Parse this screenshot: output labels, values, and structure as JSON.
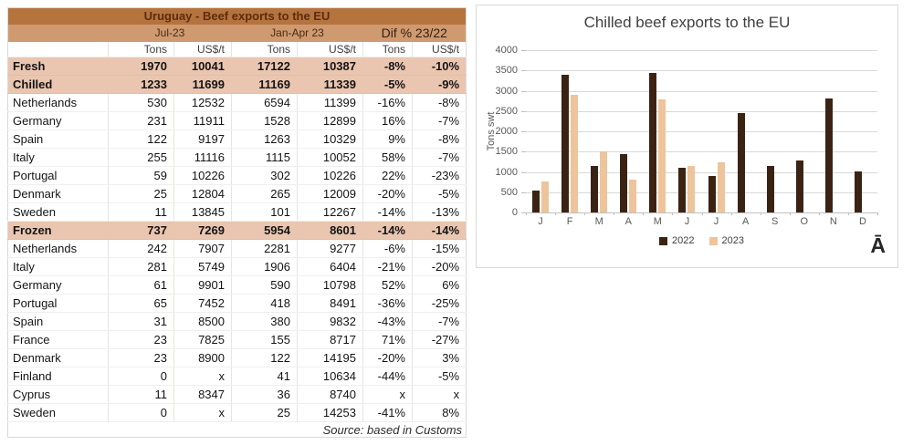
{
  "table": {
    "title": "Uruguay - Beef exports to the EU",
    "period_headers": [
      "Jul-23",
      "Jan-Apr 23",
      "Dif % 23/22"
    ],
    "sub_headers": [
      "Tons",
      "US$/t",
      "Tons",
      "US$/t",
      "Tons",
      "US$/t"
    ],
    "rows": [
      {
        "label": "Fresh",
        "type": "subtotal",
        "values": [
          "1970",
          "10041",
          "17122",
          "10387",
          "-8%",
          "-10%"
        ]
      },
      {
        "label": "Chilled",
        "type": "subtotal",
        "values": [
          "1233",
          "11699",
          "11169",
          "11339",
          "-5%",
          "-9%"
        ]
      },
      {
        "label": "Netherlands",
        "type": "data",
        "values": [
          "530",
          "12532",
          "6594",
          "11399",
          "-16%",
          "-8%"
        ]
      },
      {
        "label": "Germany",
        "type": "data",
        "values": [
          "231",
          "11911",
          "1528",
          "12899",
          "16%",
          "-7%"
        ]
      },
      {
        "label": "Spain",
        "type": "data",
        "values": [
          "122",
          "9197",
          "1263",
          "10329",
          "9%",
          "-8%"
        ]
      },
      {
        "label": "Italy",
        "type": "data",
        "values": [
          "255",
          "11116",
          "1115",
          "10052",
          "58%",
          "-7%"
        ]
      },
      {
        "label": "Portugal",
        "type": "data",
        "values": [
          "59",
          "10226",
          "302",
          "10226",
          "22%",
          "-23%"
        ]
      },
      {
        "label": "Denmark",
        "type": "data",
        "values": [
          "25",
          "12804",
          "265",
          "12009",
          "-20%",
          "-5%"
        ]
      },
      {
        "label": "Sweden",
        "type": "data",
        "values": [
          "11",
          "13845",
          "101",
          "12267",
          "-14%",
          "-13%"
        ]
      },
      {
        "label": "Frozen",
        "type": "subtotal",
        "values": [
          "737",
          "7269",
          "5954",
          "8601",
          "-14%",
          "-14%"
        ]
      },
      {
        "label": "Netherlands",
        "type": "data",
        "values": [
          "242",
          "7907",
          "2281",
          "9277",
          "-6%",
          "-15%"
        ]
      },
      {
        "label": "Italy",
        "type": "data",
        "values": [
          "281",
          "5749",
          "1906",
          "6404",
          "-21%",
          "-20%"
        ]
      },
      {
        "label": "Germany",
        "type": "data",
        "values": [
          "61",
          "9901",
          "590",
          "10798",
          "52%",
          "6%"
        ]
      },
      {
        "label": "Portugal",
        "type": "data",
        "values": [
          "65",
          "7452",
          "418",
          "8491",
          "-36%",
          "-25%"
        ]
      },
      {
        "label": "Spain",
        "type": "data",
        "values": [
          "31",
          "8500",
          "380",
          "9832",
          "-43%",
          "-7%"
        ]
      },
      {
        "label": "France",
        "type": "data",
        "values": [
          "23",
          "7825",
          "155",
          "8717",
          "71%",
          "-27%"
        ]
      },
      {
        "label": "Denmark",
        "type": "data",
        "values": [
          "23",
          "8900",
          "122",
          "14195",
          "-20%",
          "3%"
        ]
      },
      {
        "label": "Finland",
        "type": "data",
        "values": [
          "0",
          "x",
          "41",
          "10634",
          "-44%",
          "-5%"
        ]
      },
      {
        "label": "Cyprus",
        "type": "data",
        "values": [
          "11",
          "8347",
          "36",
          "8740",
          "x",
          "x"
        ]
      },
      {
        "label": "Sweden",
        "type": "data",
        "values": [
          "0",
          "x",
          "25",
          "14253",
          "-41%",
          "8%"
        ]
      }
    ],
    "source": "Source: based in Customs",
    "colors": {
      "title_bg": "#B5743E",
      "title_text": "#5E2B0E",
      "period_bg": "#CF9A70",
      "subtotal_bg": "#EAC6B0"
    }
  },
  "chart_data": {
    "type": "bar",
    "title": "Chilled beef exports to the EU",
    "ylabel": "Tons swt",
    "categories": [
      "J",
      "F",
      "M",
      "A",
      "M",
      "J",
      "J",
      "A",
      "S",
      "O",
      "N",
      "D"
    ],
    "series": [
      {
        "name": "2022",
        "color": "#3B2314",
        "values": [
          550,
          3400,
          1150,
          1440,
          3430,
          1100,
          890,
          2450,
          1140,
          1290,
          2800,
          1020
        ]
      },
      {
        "name": "2023",
        "color": "#EDC49C",
        "values": [
          770,
          2890,
          1500,
          800,
          2780,
          1150,
          1233,
          null,
          null,
          null,
          null,
          null
        ]
      }
    ],
    "ylim": [
      0,
      4000
    ],
    "ytick_step": 500,
    "grid": true,
    "legend_position": "bottom",
    "corner_glyph": "Ā"
  }
}
